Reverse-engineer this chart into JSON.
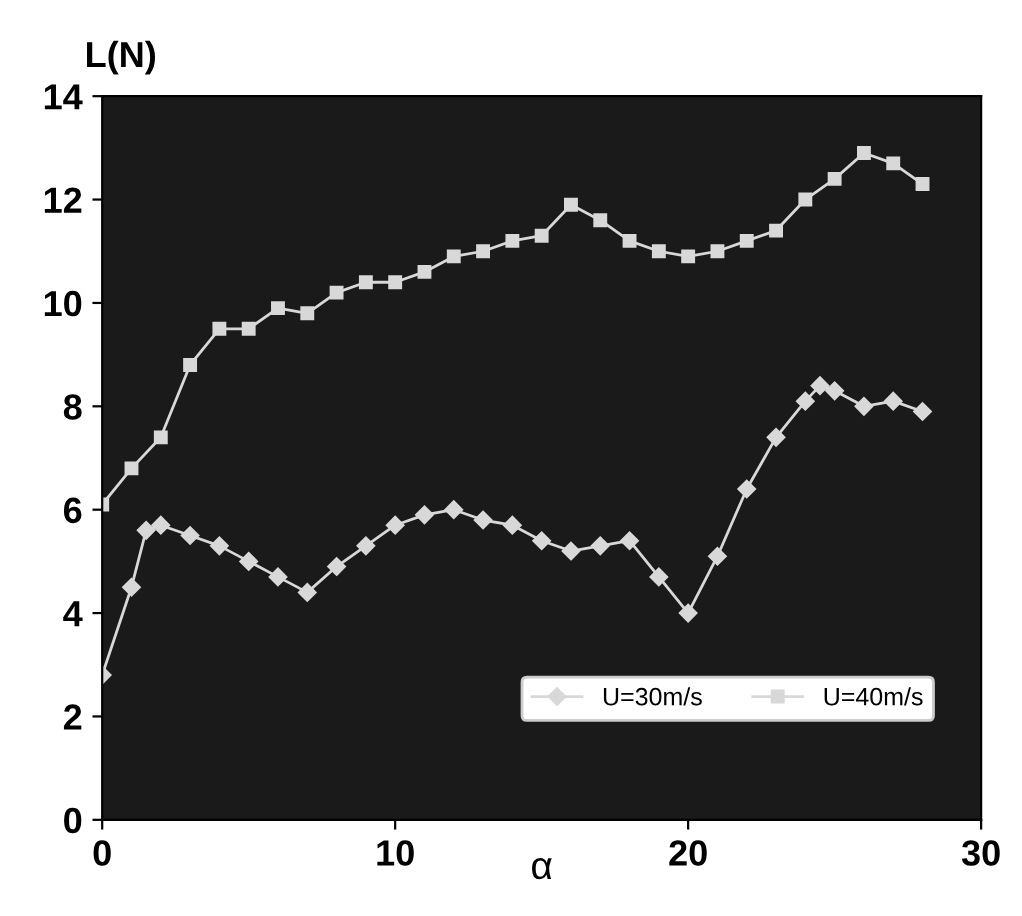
{
  "chart_data": {
    "type": "line",
    "ylabel": "L(N)",
    "xlabel": "α",
    "xlim": [
      0,
      30
    ],
    "xticks": [
      0,
      10,
      20,
      30
    ],
    "ylim": [
      0,
      14
    ],
    "yticks": [
      0,
      2,
      4,
      6,
      8,
      10,
      12,
      14
    ],
    "grid": false,
    "legend": "bottom right",
    "series": [
      {
        "name": "U=30m/s",
        "color": "#d8d8d8",
        "marker": "diamond",
        "x": [
          0,
          1,
          1.5,
          2,
          3,
          4,
          5,
          6,
          7,
          8,
          9,
          10,
          11,
          12,
          13,
          14,
          15,
          16,
          17,
          18,
          19,
          20,
          21,
          22,
          23,
          24,
          24.5,
          25,
          26,
          27,
          28
        ],
        "values": [
          2.8,
          4.5,
          5.6,
          5.7,
          5.5,
          5.3,
          5.0,
          4.7,
          4.4,
          4.9,
          5.3,
          5.7,
          5.9,
          6.0,
          5.8,
          5.7,
          5.4,
          5.2,
          5.3,
          5.4,
          4.7,
          4.0,
          5.1,
          6.4,
          7.4,
          8.1,
          8.4,
          8.3,
          8.0,
          8.1,
          7.9
        ]
      },
      {
        "name": "U=40m/s",
        "color": "#d8d8d8",
        "marker": "square",
        "x": [
          0,
          1,
          2,
          3,
          4,
          5,
          6,
          7,
          8,
          9,
          10,
          11,
          12,
          13,
          14,
          15,
          16,
          17,
          18,
          19,
          20,
          21,
          22,
          23,
          24,
          25,
          26,
          27,
          28
        ],
        "values": [
          6.1,
          6.8,
          7.4,
          8.8,
          9.5,
          9.5,
          9.9,
          9.8,
          10.2,
          10.4,
          10.4,
          10.6,
          10.9,
          11.0,
          11.2,
          11.3,
          11.9,
          11.6,
          11.2,
          11.0,
          10.9,
          11.0,
          11.2,
          11.4,
          12.0,
          12.4,
          12.9,
          12.7,
          12.3
        ]
      }
    ]
  }
}
